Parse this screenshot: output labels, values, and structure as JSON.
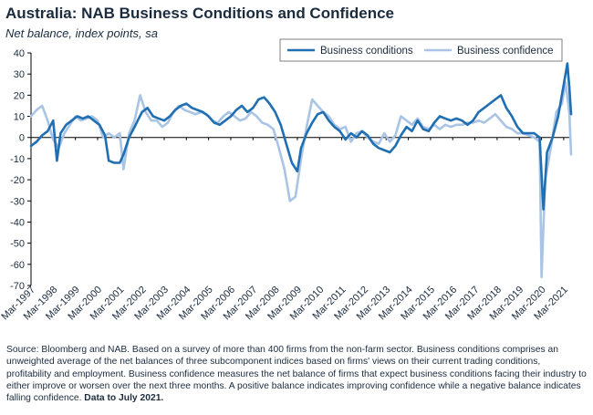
{
  "title": "Australia: NAB Business Conditions and Confidence",
  "subtitle": "Net balance, index points, sa",
  "source_text": "Source: Bloomberg and NAB. Based on a survey of more than 400 firms from the non-farm sector.  Business conditions comprises an unweighted average of the net balances of three subcomponent indices based on firms' views on their current trading conditions, profitability and employment.  Business confidence measures the net balance of firms that expect business conditions facing their industry to either improve or worsen over the next three months.  A positive balance indicates improving confidence while a negative balance indicates falling confidence. ",
  "source_bold": "Data to July 2021.",
  "colors": {
    "conditions": "#1f6fb2",
    "confidence": "#a9c4e4",
    "axis": "#000000",
    "text": "#1b2b3e"
  },
  "chart_data": {
    "type": "line",
    "title": "Australia: NAB Business Conditions and Confidence",
    "ylabel": "Net balance, index points, sa",
    "ylim": [
      -70,
      40
    ],
    "yticks": [
      40,
      30,
      20,
      10,
      0,
      -10,
      -20,
      -30,
      -40,
      -50,
      -60,
      -70
    ],
    "xlim": [
      "1997-03",
      "2021-07"
    ],
    "xticks": [
      "Mar-1997",
      "Mar-1998",
      "Mar-1999",
      "Mar-2000",
      "Mar-2001",
      "Mar-2002",
      "Mar-2003",
      "Mar-2004",
      "Mar-2005",
      "Mar-2006",
      "Mar-2007",
      "Mar-2008",
      "Mar-2009",
      "Mar-2010",
      "Mar-2011",
      "Mar-2012",
      "Mar-2013",
      "Mar-2014",
      "Mar-2015",
      "Mar-2016",
      "Mar-2017",
      "Mar-2018",
      "Mar-2019",
      "Mar-2020",
      "Mar-2021"
    ],
    "grid": false,
    "legend_position": "top-right",
    "series": [
      {
        "name": "Business conditions",
        "points": [
          [
            "1997-03",
            -4
          ],
          [
            "1997-06",
            -2
          ],
          [
            "1997-09",
            1
          ],
          [
            "1997-12",
            3
          ],
          [
            "1998-03",
            8
          ],
          [
            "1998-05",
            -11
          ],
          [
            "1998-07",
            2
          ],
          [
            "1998-10",
            6
          ],
          [
            "1999-01",
            8
          ],
          [
            "1999-04",
            10
          ],
          [
            "1999-07",
            9
          ],
          [
            "1999-10",
            10
          ],
          [
            "2000-01",
            8
          ],
          [
            "2000-04",
            6
          ],
          [
            "2000-07",
            1
          ],
          [
            "2000-09",
            -11
          ],
          [
            "2000-12",
            -12
          ],
          [
            "2001-03",
            -12
          ],
          [
            "2001-05",
            -8
          ],
          [
            "2001-08",
            0
          ],
          [
            "2001-11",
            5
          ],
          [
            "2002-03",
            12
          ],
          [
            "2002-06",
            14
          ],
          [
            "2002-09",
            10
          ],
          [
            "2002-12",
            9
          ],
          [
            "2003-03",
            8
          ],
          [
            "2003-06",
            10
          ],
          [
            "2003-09",
            13
          ],
          [
            "2003-12",
            15
          ],
          [
            "2004-03",
            16
          ],
          [
            "2004-06",
            14
          ],
          [
            "2004-09",
            13
          ],
          [
            "2004-12",
            12
          ],
          [
            "2005-03",
            10
          ],
          [
            "2005-06",
            7
          ],
          [
            "2005-09",
            6
          ],
          [
            "2005-12",
            8
          ],
          [
            "2006-03",
            10
          ],
          [
            "2006-06",
            13
          ],
          [
            "2006-09",
            15
          ],
          [
            "2006-12",
            12
          ],
          [
            "2007-03",
            14
          ],
          [
            "2007-06",
            18
          ],
          [
            "2007-09",
            19
          ],
          [
            "2007-12",
            16
          ],
          [
            "2008-03",
            12
          ],
          [
            "2008-06",
            6
          ],
          [
            "2008-09",
            -3
          ],
          [
            "2008-12",
            -12
          ],
          [
            "2009-03",
            -16
          ],
          [
            "2009-05",
            -5
          ],
          [
            "2009-08",
            2
          ],
          [
            "2009-11",
            7
          ],
          [
            "2010-02",
            11
          ],
          [
            "2010-05",
            12
          ],
          [
            "2010-08",
            8
          ],
          [
            "2010-11",
            5
          ],
          [
            "2011-02",
            3
          ],
          [
            "2011-05",
            -1
          ],
          [
            "2011-08",
            2
          ],
          [
            "2011-11",
            0
          ],
          [
            "2012-02",
            3
          ],
          [
            "2012-05",
            1
          ],
          [
            "2012-08",
            -3
          ],
          [
            "2012-11",
            -5
          ],
          [
            "2013-02",
            -6
          ],
          [
            "2013-05",
            -7
          ],
          [
            "2013-08",
            -4
          ],
          [
            "2013-11",
            1
          ],
          [
            "2014-02",
            5
          ],
          [
            "2014-05",
            3
          ],
          [
            "2014-08",
            8
          ],
          [
            "2014-11",
            4
          ],
          [
            "2015-02",
            3
          ],
          [
            "2015-05",
            7
          ],
          [
            "2015-08",
            10
          ],
          [
            "2015-11",
            9
          ],
          [
            "2016-02",
            8
          ],
          [
            "2016-05",
            9
          ],
          [
            "2016-08",
            8
          ],
          [
            "2016-11",
            6
          ],
          [
            "2017-02",
            8
          ],
          [
            "2017-05",
            12
          ],
          [
            "2017-08",
            14
          ],
          [
            "2017-11",
            16
          ],
          [
            "2018-02",
            18
          ],
          [
            "2018-05",
            20
          ],
          [
            "2018-08",
            14
          ],
          [
            "2018-11",
            10
          ],
          [
            "2019-02",
            5
          ],
          [
            "2019-05",
            2
          ],
          [
            "2019-08",
            2
          ],
          [
            "2019-11",
            2
          ],
          [
            "2020-02",
            0
          ],
          [
            "2020-04",
            -34
          ],
          [
            "2020-06",
            -7
          ],
          [
            "2020-09",
            0
          ],
          [
            "2020-12",
            10
          ],
          [
            "2021-03",
            25
          ],
          [
            "2021-05",
            35
          ],
          [
            "2021-06",
            24
          ],
          [
            "2021-07",
            11
          ]
        ]
      },
      {
        "name": "Business confidence",
        "points": [
          [
            "1997-03",
            10
          ],
          [
            "1997-06",
            13
          ],
          [
            "1997-09",
            15
          ],
          [
            "1997-12",
            8
          ],
          [
            "1998-03",
            -1
          ],
          [
            "1998-06",
            -5
          ],
          [
            "1998-09",
            2
          ],
          [
            "1998-12",
            6
          ],
          [
            "1999-03",
            10
          ],
          [
            "1999-06",
            8
          ],
          [
            "1999-09",
            9
          ],
          [
            "1999-12",
            10
          ],
          [
            "2000-03",
            8
          ],
          [
            "2000-06",
            0
          ],
          [
            "2000-09",
            2
          ],
          [
            "2000-12",
            0
          ],
          [
            "2001-03",
            2
          ],
          [
            "2001-05",
            -15
          ],
          [
            "2001-08",
            2
          ],
          [
            "2001-11",
            8
          ],
          [
            "2002-02",
            20
          ],
          [
            "2002-05",
            12
          ],
          [
            "2002-08",
            8
          ],
          [
            "2002-11",
            8
          ],
          [
            "2003-02",
            5
          ],
          [
            "2003-05",
            7
          ],
          [
            "2003-08",
            12
          ],
          [
            "2003-11",
            15
          ],
          [
            "2004-02",
            13
          ],
          [
            "2004-05",
            12
          ],
          [
            "2004-08",
            11
          ],
          [
            "2004-11",
            12
          ],
          [
            "2005-02",
            11
          ],
          [
            "2005-05",
            8
          ],
          [
            "2005-08",
            7
          ],
          [
            "2005-11",
            10
          ],
          [
            "2006-02",
            12
          ],
          [
            "2006-05",
            10
          ],
          [
            "2006-08",
            8
          ],
          [
            "2006-11",
            9
          ],
          [
            "2007-02",
            12
          ],
          [
            "2007-05",
            10
          ],
          [
            "2007-08",
            7
          ],
          [
            "2007-11",
            6
          ],
          [
            "2008-02",
            4
          ],
          [
            "2008-05",
            -5
          ],
          [
            "2008-08",
            -15
          ],
          [
            "2008-11",
            -30
          ],
          [
            "2009-02",
            -28
          ],
          [
            "2009-05",
            -10
          ],
          [
            "2009-08",
            5
          ],
          [
            "2009-11",
            18
          ],
          [
            "2010-02",
            15
          ],
          [
            "2010-05",
            12
          ],
          [
            "2010-08",
            10
          ],
          [
            "2010-11",
            6
          ],
          [
            "2011-02",
            4
          ],
          [
            "2011-05",
            5
          ],
          [
            "2011-08",
            -2
          ],
          [
            "2011-11",
            2
          ],
          [
            "2012-02",
            3
          ],
          [
            "2012-05",
            0
          ],
          [
            "2012-08",
            -2
          ],
          [
            "2012-11",
            -3
          ],
          [
            "2013-02",
            2
          ],
          [
            "2013-05",
            -2
          ],
          [
            "2013-08",
            1
          ],
          [
            "2013-11",
            10
          ],
          [
            "2014-02",
            8
          ],
          [
            "2014-05",
            6
          ],
          [
            "2014-08",
            9
          ],
          [
            "2014-11",
            5
          ],
          [
            "2015-02",
            4
          ],
          [
            "2015-05",
            6
          ],
          [
            "2015-08",
            4
          ],
          [
            "2015-11",
            6
          ],
          [
            "2016-02",
            5
          ],
          [
            "2016-05",
            6
          ],
          [
            "2016-08",
            6
          ],
          [
            "2016-11",
            7
          ],
          [
            "2017-02",
            7
          ],
          [
            "2017-05",
            8
          ],
          [
            "2017-08",
            7
          ],
          [
            "2017-11",
            9
          ],
          [
            "2018-02",
            11
          ],
          [
            "2018-05",
            8
          ],
          [
            "2018-08",
            5
          ],
          [
            "2018-11",
            4
          ],
          [
            "2019-02",
            2
          ],
          [
            "2019-05",
            2
          ],
          [
            "2019-08",
            1
          ],
          [
            "2019-11",
            0
          ],
          [
            "2020-02",
            -2
          ],
          [
            "2020-03",
            -66
          ],
          [
            "2020-05",
            -20
          ],
          [
            "2020-08",
            -5
          ],
          [
            "2020-11",
            12
          ],
          [
            "2021-02",
            16
          ],
          [
            "2021-04",
            26
          ],
          [
            "2021-06",
            12
          ],
          [
            "2021-07",
            -8
          ]
        ]
      }
    ]
  }
}
